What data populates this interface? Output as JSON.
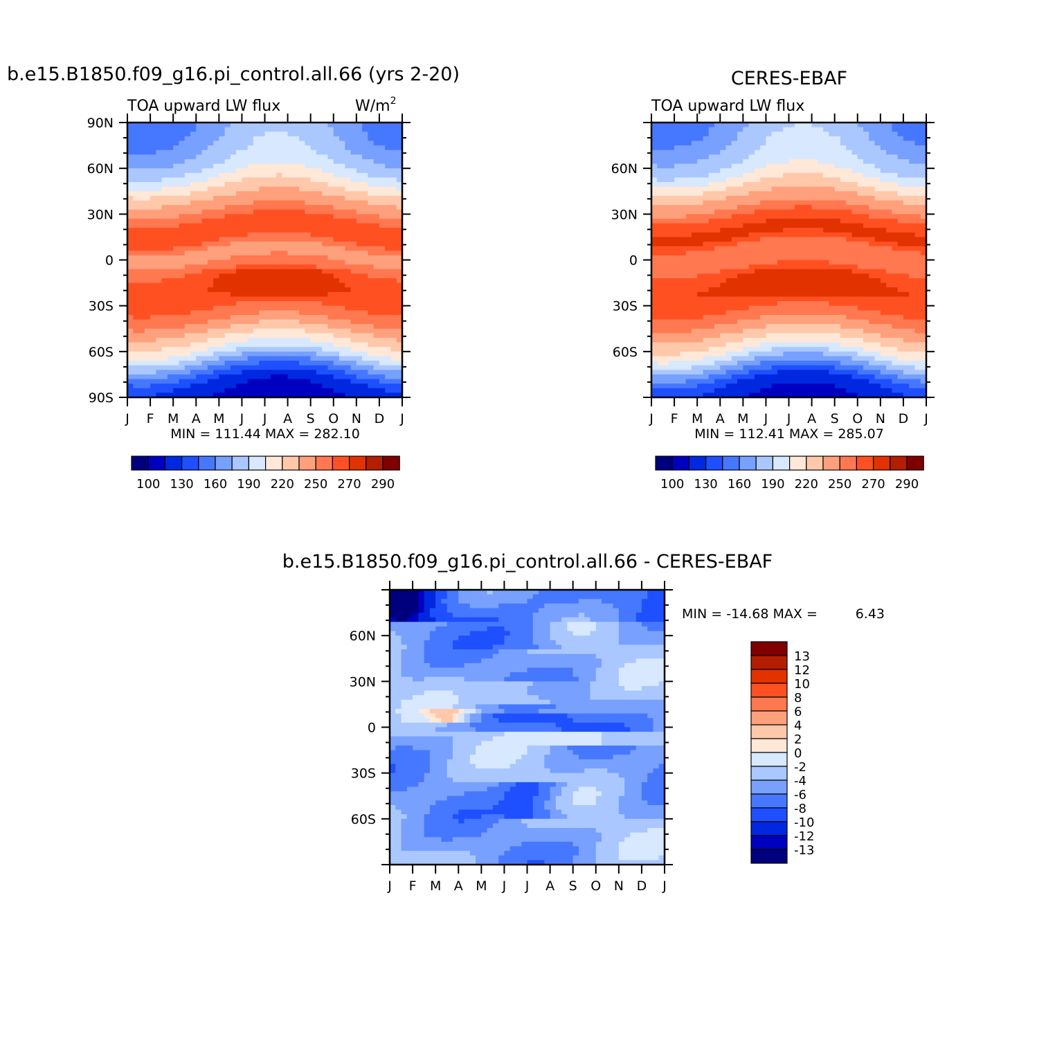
{
  "chart_data": [
    {
      "type": "heatmap",
      "title": "b.e15.B1850.f09_g16.pi_control.all.66 (yrs 2-20)",
      "left_label": "TOA upward LW flux",
      "units_base": "W/m",
      "units_exp": "2",
      "x_ticks": [
        "J",
        "F",
        "M",
        "A",
        "M",
        "J",
        "J",
        "A",
        "S",
        "O",
        "N",
        "D",
        "J"
      ],
      "y_ticks": [
        "90N",
        "60N",
        "30N",
        "0",
        "30S",
        "60S",
        "90S"
      ],
      "y_values": [
        90,
        60,
        30,
        0,
        -30,
        -60,
        -90
      ],
      "ylim": [
        -90,
        90
      ],
      "stats": "MIN = 111.44 MAX = 282.10",
      "profile": [
        [
          -90,
          115
        ],
        [
          -80,
          125
        ],
        [
          -70,
          160
        ],
        [
          -60,
          200
        ],
        [
          -50,
          225
        ],
        [
          -40,
          250
        ],
        [
          -30,
          262
        ],
        [
          -20,
          268
        ],
        [
          -12,
          266
        ],
        [
          -5,
          255
        ],
        [
          0,
          248
        ],
        [
          5,
          245
        ],
        [
          10,
          255
        ],
        [
          15,
          268
        ],
        [
          20,
          270
        ],
        [
          30,
          255
        ],
        [
          40,
          235
        ],
        [
          50,
          212
        ],
        [
          60,
          190
        ],
        [
          70,
          178
        ],
        [
          80,
          170
        ],
        [
          90,
          165
        ]
      ],
      "colorbar": {
        "colors": [
          "#00007f",
          "#0000c0",
          "#0028e0",
          "#1e50ff",
          "#4678ff",
          "#78a0ff",
          "#aac8ff",
          "#d7e8ff",
          "#ffe8d8",
          "#ffc8aa",
          "#ffa07d",
          "#ff7850",
          "#ff5022",
          "#e13200",
          "#b41e00",
          "#800000"
        ],
        "labels": [
          "100",
          "130",
          "160",
          "190",
          "220",
          "250",
          "270",
          "290"
        ]
      }
    },
    {
      "type": "heatmap",
      "title": "CERES-EBAF",
      "left_label": "TOA upward LW flux",
      "x_ticks": [
        "J",
        "F",
        "M",
        "A",
        "M",
        "J",
        "J",
        "A",
        "S",
        "O",
        "N",
        "D",
        "J"
      ],
      "y_ticks": [
        "60N",
        "30N",
        "0",
        "30S",
        "60S"
      ],
      "y_values": [
        60,
        30,
        0,
        -30,
        -60
      ],
      "ylim": [
        -90,
        90
      ],
      "stats": "MIN = 112.41 MAX = 285.07",
      "profile": [
        [
          -90,
          118
        ],
        [
          -80,
          130
        ],
        [
          -70,
          168
        ],
        [
          -60,
          205
        ],
        [
          -50,
          230
        ],
        [
          -40,
          252
        ],
        [
          -30,
          264
        ],
        [
          -20,
          270
        ],
        [
          -12,
          268
        ],
        [
          -5,
          258
        ],
        [
          0,
          252
        ],
        [
          5,
          250
        ],
        [
          10,
          260
        ],
        [
          15,
          272
        ],
        [
          20,
          272
        ],
        [
          30,
          258
        ],
        [
          40,
          238
        ],
        [
          50,
          214
        ],
        [
          60,
          192
        ],
        [
          70,
          182
        ],
        [
          80,
          174
        ],
        [
          90,
          168
        ]
      ],
      "colorbar": {
        "colors": [
          "#00007f",
          "#0000c0",
          "#0028e0",
          "#1e50ff",
          "#4678ff",
          "#78a0ff",
          "#aac8ff",
          "#d7e8ff",
          "#ffe8d8",
          "#ffc8aa",
          "#ffa07d",
          "#ff7850",
          "#ff5022",
          "#e13200",
          "#b41e00",
          "#800000"
        ],
        "labels": [
          "100",
          "130",
          "160",
          "190",
          "220",
          "250",
          "270",
          "290"
        ]
      }
    },
    {
      "type": "heatmap",
      "title": "b.e15.B1850.f09_g16.pi_control.all.66 - CERES-EBAF",
      "x_ticks": [
        "J",
        "F",
        "M",
        "A",
        "M",
        "J",
        "J",
        "A",
        "S",
        "O",
        "N",
        "D",
        "J"
      ],
      "y_ticks": [
        "60N",
        "30N",
        "0",
        "30S",
        "60S"
      ],
      "y_values": [
        60,
        30,
        0,
        -30,
        -60
      ],
      "ylim": [
        -90,
        90
      ],
      "stats_label": "MIN = -14.68 MAX =",
      "stats_max": "6.43",
      "colorbar": {
        "colors": [
          "#800000",
          "#b41e00",
          "#e13200",
          "#ff5022",
          "#ff7850",
          "#ffa07d",
          "#ffc8aa",
          "#ffe8d8",
          "#d7e8ff",
          "#aac8ff",
          "#78a0ff",
          "#4678ff",
          "#1e50ff",
          "#0028e0",
          "#0000c0",
          "#00007f"
        ],
        "labels": [
          "13",
          "12",
          "10",
          "8",
          "6",
          "4",
          "2",
          "0",
          "-2",
          "-4",
          "-6",
          "-8",
          "-10",
          "-12",
          "-13"
        ]
      }
    }
  ]
}
